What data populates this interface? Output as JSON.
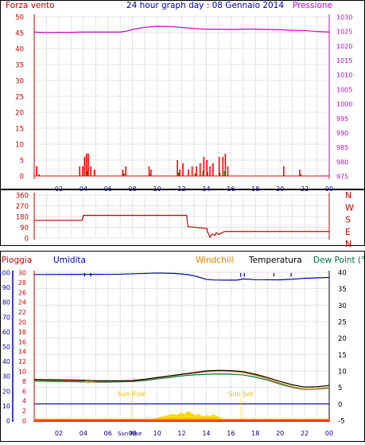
{
  "title": "24 hour graph day : 08 Gennaio 2014",
  "x_ticks": [
    "02",
    "04",
    "06",
    "08",
    "10",
    "12",
    "14",
    "16",
    "18",
    "20",
    "22",
    "00"
  ],
  "colors": {
    "wind": "#ff0000",
    "gust": "#cc0000",
    "wind_bars_green": "#008000",
    "wind_bars_purple": "#a000a0",
    "pressure": "#cc00cc",
    "direction": "#cc0000",
    "humidity": "#0000aa",
    "windchill": "#e08000",
    "temperature": "#000000",
    "dewpoint": "#007040",
    "rain": "#ff0000",
    "solar": "#ffd700",
    "grid": "#c8c8c8",
    "axis_red": "#cc0000"
  },
  "chart_data": [
    {
      "type": "bar",
      "panel": "wind-pressure",
      "left_axis_label": "Forza vento",
      "right_axis_label": "Pressione",
      "left_ticks": [
        "0",
        "5",
        "10",
        "15",
        "20",
        "25",
        "30",
        "35",
        "40",
        "45",
        "50"
      ],
      "right_ticks": [
        "975",
        "980",
        "985",
        "990",
        "995",
        "1000",
        "1005",
        "1010",
        "1015",
        "1020",
        "1025",
        "1030"
      ],
      "left_ylim": [
        0,
        50
      ],
      "right_ylim": [
        975,
        1030
      ],
      "grid": true,
      "series": [
        {
          "name": "Forza vento",
          "style": "bars",
          "x": [
            0.2,
            3.7,
            3.95,
            4.1,
            4.25,
            4.4,
            4.6,
            4.9,
            7.2,
            7.45,
            9.35,
            9.5,
            11.65,
            11.85,
            12.1,
            12.55,
            12.85,
            13.2,
            13.5,
            13.8,
            14.05,
            14.3,
            14.55,
            15.05,
            15.35,
            15.55,
            15.75,
            20.3,
            21.6
          ],
          "values": [
            3,
            3,
            3,
            6,
            7,
            7,
            3,
            2,
            2,
            3,
            3,
            2,
            5,
            2,
            4,
            2,
            3,
            3,
            4,
            6,
            5,
            3,
            4,
            6,
            6,
            7,
            3,
            3,
            2
          ]
        },
        {
          "name": "",
          "style": "bars-small-green",
          "x": [
            0.4,
            4.1,
            4.35,
            7.3,
            9.4,
            11.75,
            13.1,
            13.75,
            14.1,
            15.1,
            15.5,
            21.7
          ],
          "values": [
            0.5,
            1,
            1.5,
            0.8,
            0.6,
            1,
            0.8,
            1.5,
            1.2,
            1,
            1.5,
            0.5
          ]
        },
        {
          "name": "Pressione",
          "style": "line",
          "x": [
            0,
            1,
            2,
            3,
            4,
            5,
            6,
            7,
            7.5,
            8,
            9,
            10,
            11,
            12,
            13,
            14,
            15,
            16,
            17,
            18,
            19,
            20,
            21,
            22,
            23,
            24
          ],
          "values": [
            1024.7,
            1024.5,
            1024.6,
            1024.6,
            1024.7,
            1024.7,
            1024.7,
            1024.7,
            1025.0,
            1025.6,
            1026.3,
            1026.7,
            1026.6,
            1026.3,
            1025.9,
            1025.7,
            1025.7,
            1025.6,
            1025.7,
            1025.7,
            1025.6,
            1025.5,
            1025.3,
            1025.2,
            1024.9,
            1024.7
          ]
        }
      ]
    },
    {
      "type": "line",
      "panel": "wind-direction",
      "left_ticks": [
        "0",
        "90",
        "180",
        "270",
        "360"
      ],
      "right_ticks": [
        "N",
        "E",
        "S",
        "W",
        "N"
      ],
      "ylim": [
        0,
        360
      ],
      "grid": true,
      "series": [
        {
          "name": "",
          "x": [
            0,
            3.9,
            4.0,
            12.4,
            12.5,
            14.05,
            14.1,
            14.3,
            14.5,
            14.7,
            14.8,
            15.0,
            15.3,
            15.5,
            16.0,
            16.3,
            24
          ],
          "values": [
            148,
            148,
            190,
            190,
            95,
            80,
            52,
            8,
            35,
            22,
            45,
            30,
            46,
            55,
            55,
            55,
            55
          ]
        }
      ]
    },
    {
      "type": "line",
      "panel": "temperature-humidity-rain",
      "legend": [
        "Pioggia",
        "Umidita",
        "Windchill",
        "Temperatura",
        "Dew Point (°C"
      ],
      "rain_ticks": [
        "0",
        "2",
        "4",
        "6",
        "8",
        "10",
        "12",
        "14",
        "16",
        "18",
        "20",
        "22",
        "24",
        "26",
        "28",
        "30"
      ],
      "humidity_ticks": [
        "0",
        "10",
        "20",
        "30",
        "40",
        "50",
        "60",
        "70",
        "80",
        "90",
        "100"
      ],
      "temp_ticks": [
        "-5",
        "0",
        "5",
        "10",
        "15",
        "20",
        "25",
        "30",
        "35",
        "40"
      ],
      "temp_ylim": [
        -5,
        40
      ],
      "humidity_ylim": [
        0,
        100
      ],
      "sun_labels": {
        "sunrise": "Sun Rise",
        "sunset": "Sun Set"
      },
      "sunrise_x": 7.9,
      "sunset_x": 16.8,
      "x_tick_extra": "Sun Rise",
      "series": [
        {
          "name": "Umidita",
          "x": [
            0,
            4,
            5,
            7,
            10,
            11.5,
            12.5,
            13.2,
            13.6,
            14.0,
            14.6,
            15.5,
            16.5,
            17.0,
            18,
            20,
            21,
            22,
            24
          ],
          "values": [
            98.5,
            98.6,
            98.6,
            98.7,
            99.5,
            99.2,
            98.4,
            97.2,
            96.2,
            95.2,
            94.8,
            94.7,
            94.7,
            95.5,
            95.0,
            94.9,
            95.3,
            95.9,
            96.5
          ]
        },
        {
          "name": "Temperatura",
          "x": [
            0,
            2,
            4,
            5,
            6,
            7,
            8,
            9,
            10,
            11,
            12,
            13,
            14,
            15,
            16,
            17,
            18,
            19,
            20,
            21,
            22,
            23,
            24
          ],
          "values": [
            7.4,
            7.3,
            7.2,
            7.0,
            7.0,
            7.0,
            7.1,
            7.5,
            8.0,
            8.5,
            9.0,
            9.5,
            10.0,
            10.2,
            10.1,
            9.8,
            9.0,
            8.0,
            6.8,
            5.8,
            5.1,
            5.2,
            5.6
          ]
        },
        {
          "name": "Windchill",
          "x": [
            0,
            2,
            4,
            4.4,
            5,
            6,
            7,
            8,
            9,
            10,
            11,
            12,
            13,
            14,
            15,
            16,
            17,
            18,
            19,
            20,
            21,
            22,
            23,
            24
          ],
          "values": [
            7.2,
            7.1,
            7.0,
            6.5,
            6.8,
            6.9,
            6.9,
            7.0,
            7.4,
            7.9,
            8.4,
            8.9,
            9.3,
            9.8,
            10.0,
            9.9,
            9.5,
            8.7,
            7.6,
            6.3,
            5.2,
            4.5,
            4.6,
            5.0
          ]
        },
        {
          "name": "Dew Point (°C",
          "x": [
            0,
            2,
            4,
            5,
            6,
            7,
            8,
            9,
            10,
            11,
            12,
            13,
            14,
            15,
            16,
            17,
            18,
            19,
            20,
            21,
            22,
            23,
            24
          ],
          "values": [
            6.9,
            6.8,
            6.7,
            6.6,
            6.6,
            6.7,
            6.8,
            7.1,
            7.6,
            8.0,
            8.5,
            8.8,
            9.0,
            9.1,
            9.0,
            8.8,
            8.1,
            7.2,
            6.0,
            5.0,
            4.4,
            4.5,
            4.8
          ]
        },
        {
          "name": "Pioggia",
          "x": [
            0,
            24
          ],
          "values": [
            0,
            0
          ]
        },
        {
          "name": "",
          "style": "solar-area",
          "x": [
            9.8,
            10.2,
            10.6,
            11.0,
            11.3,
            11.6,
            11.9,
            12.2,
            12.5,
            12.8,
            13.1,
            13.4,
            13.7,
            14.0,
            14.3,
            14.6,
            14.9,
            15.2
          ],
          "values": [
            -4.4,
            -4.0,
            -3.7,
            -3.3,
            -3.0,
            -3.4,
            -2.6,
            -3.1,
            -2.2,
            -2.8,
            -3.5,
            -3.0,
            -3.9,
            -3.4,
            -3.7,
            -3.2,
            -3.8,
            -4.3
          ]
        }
      ]
    }
  ]
}
